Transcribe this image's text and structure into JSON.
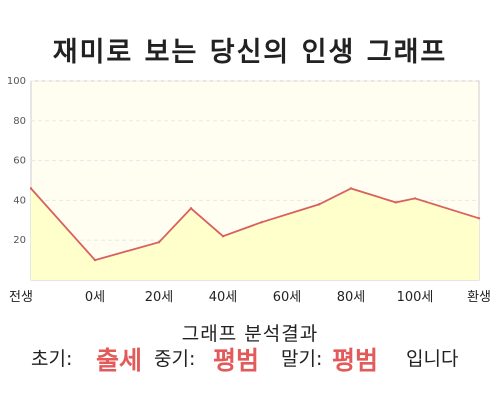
{
  "page": {
    "title": "재미로 보는 당신의 인생 그래프"
  },
  "chart_data": {
    "type": "area",
    "title": "재미로 보는 당신의 인생 그래프",
    "xlabel": "",
    "ylabel": "",
    "ylim": [
      0,
      100
    ],
    "y_ticks": [
      20,
      40,
      60,
      80,
      100
    ],
    "x_tick_labels": [
      "전생",
      "0세",
      "20세",
      "40세",
      "60세",
      "80세",
      "100세",
      "환생"
    ],
    "grid": true,
    "legend": "none",
    "series": [
      {
        "x": [
          0,
          1,
          2,
          2.5,
          3,
          3.6,
          4.5,
          5,
          5.7,
          6,
          7
        ],
        "values": [
          46,
          10,
          19,
          36,
          22,
          29,
          38,
          46,
          39,
          41,
          31
        ]
      }
    ],
    "colors": {
      "line": "#d96060",
      "fill": "#ffffcc",
      "plot_bg": "#fffef0",
      "grid": "#e8e8e8"
    }
  },
  "summary": {
    "label": "그래프 분석결과",
    "early_label": "초기:",
    "early_value": "출세",
    "middle_label": "중기:",
    "middle_value": "평범",
    "late_label": "말기:",
    "late_value": "평범",
    "ending": "입니다",
    "value_color": "#e35a5a"
  }
}
